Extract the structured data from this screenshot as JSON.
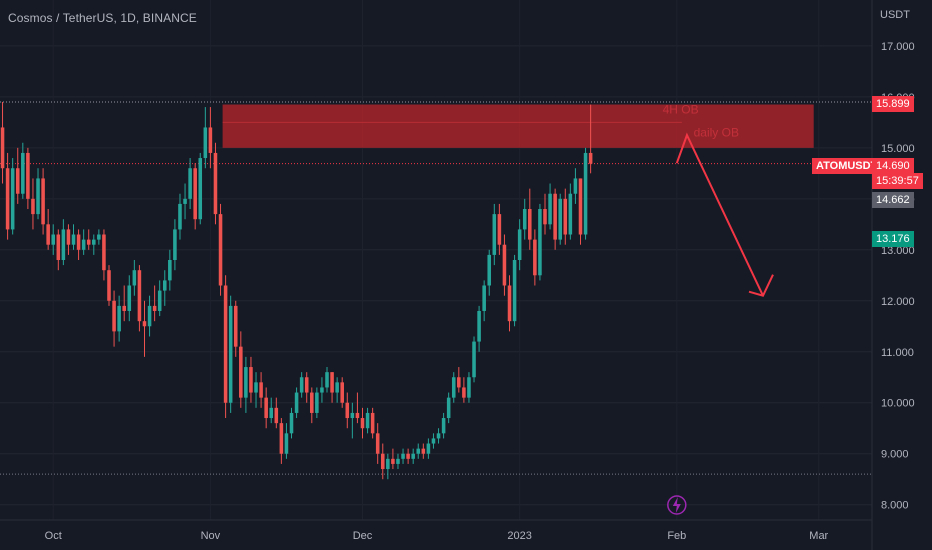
{
  "header": {
    "symbol_title": "Cosmos / TetherUS, 1D, BINANCE",
    "currency": "USDT"
  },
  "annotation": {
    "label_line1": "4H OB",
    "label_line2": "daily OB"
  },
  "price_tags": {
    "zone_top": "15.899",
    "last_label": "ATOMUSDT",
    "last_price": "14.690",
    "countdown": "15:39:57",
    "grey_level": "14.662",
    "green_level": "13.176"
  },
  "colors": {
    "background": "#161a25",
    "up": "#26a69a",
    "down": "#ef5350",
    "zone": "#b2242a",
    "arrow": "#f23645",
    "axis_text": "#b2b5be",
    "grey_tag": "#5d606b",
    "green_tag": "#089981"
  },
  "icons": {
    "event_marker": "lightning-icon"
  },
  "chart_data": {
    "type": "candlestick",
    "title": "Cosmos / TetherUS, 1D, BINANCE",
    "x_tick_labels": [
      "Oct",
      "Nov",
      "Dec",
      "2023",
      "Feb",
      "Mar"
    ],
    "y_tick_labels": [
      "8.000",
      "9.000",
      "10.000",
      "11.000",
      "12.000",
      "13.000",
      "14.000",
      "15.000",
      "16.000",
      "17.000"
    ],
    "ylim": [
      7.7,
      17.9
    ],
    "xlim": [
      "2022-09-21",
      "2023-03-12"
    ],
    "horizontal_levels": [
      15.899,
      14.69,
      8.6
    ],
    "zone": {
      "from": "2022-11-04",
      "to": "2023-02-28",
      "low": 15.0,
      "high": 15.85
    },
    "arrow_path": [
      {
        "date": "2023-02-01",
        "price": 14.7
      },
      {
        "date": "2023-02-03",
        "price": 15.25
      },
      {
        "date": "2023-02-18",
        "price": 12.1
      }
    ],
    "series": [
      {
        "start": "2022-09-21",
        "values": [
          [
            15.4,
            15.9,
            14.3,
            14.6
          ],
          [
            14.6,
            14.9,
            13.2,
            13.4
          ],
          [
            13.4,
            14.8,
            13.3,
            14.6
          ],
          [
            14.6,
            15.0,
            13.9,
            14.1
          ],
          [
            14.1,
            15.1,
            14.0,
            14.9
          ],
          [
            14.9,
            15.0,
            13.8,
            14.0
          ],
          [
            14.0,
            14.4,
            13.4,
            13.7
          ],
          [
            13.7,
            14.6,
            13.6,
            14.4
          ],
          [
            14.4,
            14.6,
            13.3,
            13.5
          ],
          [
            13.5,
            13.8,
            13.0,
            13.1
          ],
          [
            13.1,
            13.5,
            12.9,
            13.3
          ],
          [
            13.3,
            13.4,
            12.6,
            12.8
          ],
          [
            12.8,
            13.6,
            12.7,
            13.4
          ],
          [
            13.4,
            13.5,
            12.9,
            13.1
          ],
          [
            13.1,
            13.5,
            13.0,
            13.3
          ],
          [
            13.3,
            13.4,
            12.8,
            13.0
          ],
          [
            13.0,
            13.4,
            12.9,
            13.2
          ],
          [
            13.2,
            13.4,
            13.0,
            13.1
          ],
          [
            13.1,
            13.3,
            12.9,
            13.2
          ],
          [
            13.2,
            13.4,
            13.1,
            13.3
          ],
          [
            13.3,
            13.4,
            12.4,
            12.6
          ],
          [
            12.6,
            12.7,
            11.9,
            12.0
          ],
          [
            12.0,
            12.2,
            11.1,
            11.4
          ],
          [
            11.4,
            12.1,
            11.2,
            11.9
          ],
          [
            11.9,
            12.3,
            11.6,
            11.8
          ],
          [
            11.8,
            12.5,
            11.6,
            12.3
          ],
          [
            12.3,
            12.8,
            12.1,
            12.6
          ],
          [
            12.6,
            12.7,
            11.4,
            11.6
          ],
          [
            11.6,
            12.0,
            10.9,
            11.5
          ],
          [
            11.5,
            12.1,
            11.3,
            11.9
          ],
          [
            11.9,
            12.3,
            11.6,
            11.8
          ],
          [
            11.8,
            12.4,
            11.7,
            12.2
          ],
          [
            12.2,
            12.6,
            11.9,
            12.4
          ],
          [
            12.4,
            13.0,
            12.2,
            12.8
          ],
          [
            12.8,
            13.6,
            12.6,
            13.4
          ],
          [
            13.4,
            14.1,
            13.2,
            13.9
          ],
          [
            13.9,
            14.3,
            13.6,
            14.0
          ],
          [
            14.0,
            14.8,
            13.8,
            14.6
          ],
          [
            14.6,
            14.7,
            13.4,
            13.6
          ],
          [
            13.6,
            14.9,
            13.5,
            14.8
          ],
          [
            14.8,
            15.8,
            14.6,
            15.4
          ],
          [
            15.4,
            15.8,
            14.6,
            14.9
          ],
          [
            14.9,
            15.1,
            13.5,
            13.7
          ],
          [
            13.7,
            13.9,
            12.1,
            12.3
          ],
          [
            12.3,
            12.5,
            9.7,
            10.0
          ],
          [
            10.0,
            12.1,
            9.8,
            11.9
          ],
          [
            11.9,
            12.0,
            10.9,
            11.1
          ],
          [
            11.1,
            11.4,
            9.9,
            10.1
          ],
          [
            10.1,
            10.9,
            9.8,
            10.7
          ],
          [
            10.7,
            10.9,
            10.0,
            10.2
          ],
          [
            10.2,
            10.6,
            9.9,
            10.4
          ],
          [
            10.4,
            10.6,
            9.9,
            10.1
          ],
          [
            10.1,
            10.3,
            9.5,
            9.7
          ],
          [
            9.7,
            10.1,
            9.6,
            9.9
          ],
          [
            9.9,
            10.1,
            9.5,
            9.6
          ],
          [
            9.6,
            9.7,
            8.8,
            9.0
          ],
          [
            9.0,
            9.6,
            8.9,
            9.4
          ],
          [
            9.4,
            9.9,
            9.3,
            9.8
          ],
          [
            9.8,
            10.3,
            9.7,
            10.2
          ],
          [
            10.2,
            10.6,
            10.1,
            10.5
          ],
          [
            10.5,
            10.6,
            10.0,
            10.2
          ],
          [
            10.2,
            10.3,
            9.6,
            9.8
          ],
          [
            9.8,
            10.3,
            9.7,
            10.2
          ],
          [
            10.2,
            10.5,
            10.0,
            10.3
          ],
          [
            10.3,
            10.7,
            10.2,
            10.6
          ],
          [
            10.6,
            10.6,
            10.0,
            10.2
          ],
          [
            10.2,
            10.5,
            10.0,
            10.4
          ],
          [
            10.4,
            10.5,
            9.9,
            10.0
          ],
          [
            10.0,
            10.2,
            9.5,
            9.7
          ],
          [
            9.7,
            10.0,
            9.3,
            9.8
          ],
          [
            9.8,
            10.2,
            9.6,
            9.7
          ],
          [
            9.7,
            9.9,
            9.3,
            9.5
          ],
          [
            9.5,
            9.9,
            9.4,
            9.8
          ],
          [
            9.8,
            9.9,
            9.3,
            9.4
          ],
          [
            9.4,
            9.6,
            8.8,
            9.0
          ],
          [
            9.0,
            9.2,
            8.5,
            8.7
          ],
          [
            8.7,
            9.0,
            8.5,
            8.9
          ],
          [
            8.9,
            9.1,
            8.7,
            8.8
          ],
          [
            8.8,
            9.0,
            8.7,
            8.9
          ],
          [
            8.9,
            9.1,
            8.8,
            9.0
          ],
          [
            9.0,
            9.1,
            8.8,
            8.9
          ],
          [
            8.9,
            9.1,
            8.8,
            9.0
          ],
          [
            9.0,
            9.2,
            8.9,
            9.1
          ],
          [
            9.1,
            9.2,
            8.9,
            9.0
          ],
          [
            9.0,
            9.3,
            8.9,
            9.2
          ],
          [
            9.2,
            9.4,
            9.1,
            9.3
          ],
          [
            9.3,
            9.5,
            9.2,
            9.4
          ],
          [
            9.4,
            9.8,
            9.3,
            9.7
          ],
          [
            9.7,
            10.2,
            9.6,
            10.1
          ],
          [
            10.1,
            10.6,
            10.0,
            10.5
          ],
          [
            10.5,
            10.7,
            10.2,
            10.3
          ],
          [
            10.3,
            10.5,
            10.0,
            10.1
          ],
          [
            10.1,
            10.6,
            10.0,
            10.5
          ],
          [
            10.5,
            11.3,
            10.4,
            11.2
          ],
          [
            11.2,
            11.9,
            11.0,
            11.8
          ],
          [
            11.8,
            12.4,
            11.6,
            12.3
          ],
          [
            12.3,
            13.0,
            12.1,
            12.9
          ],
          [
            12.9,
            13.9,
            12.7,
            13.7
          ],
          [
            13.7,
            13.9,
            12.9,
            13.1
          ],
          [
            13.1,
            13.3,
            12.1,
            12.3
          ],
          [
            12.3,
            12.5,
            11.4,
            11.6
          ],
          [
            11.6,
            12.9,
            11.5,
            12.8
          ],
          [
            12.8,
            13.6,
            12.6,
            13.4
          ],
          [
            13.4,
            14.0,
            13.2,
            13.8
          ],
          [
            13.8,
            14.2,
            13.0,
            13.2
          ],
          [
            13.2,
            13.4,
            12.3,
            12.5
          ],
          [
            12.5,
            13.9,
            12.4,
            13.8
          ],
          [
            13.8,
            14.1,
            13.3,
            13.5
          ],
          [
            13.5,
            14.3,
            13.4,
            14.1
          ],
          [
            14.1,
            14.2,
            13.0,
            13.2
          ],
          [
            13.2,
            14.1,
            13.1,
            14.0
          ],
          [
            14.0,
            14.2,
            13.1,
            13.3
          ],
          [
            13.3,
            14.3,
            13.2,
            14.1
          ],
          [
            14.1,
            14.6,
            13.9,
            14.4
          ],
          [
            14.4,
            14.4,
            13.1,
            13.3
          ],
          [
            13.3,
            15.0,
            13.2,
            14.9
          ],
          [
            14.9,
            15.85,
            14.5,
            14.69
          ]
        ]
      }
    ]
  }
}
